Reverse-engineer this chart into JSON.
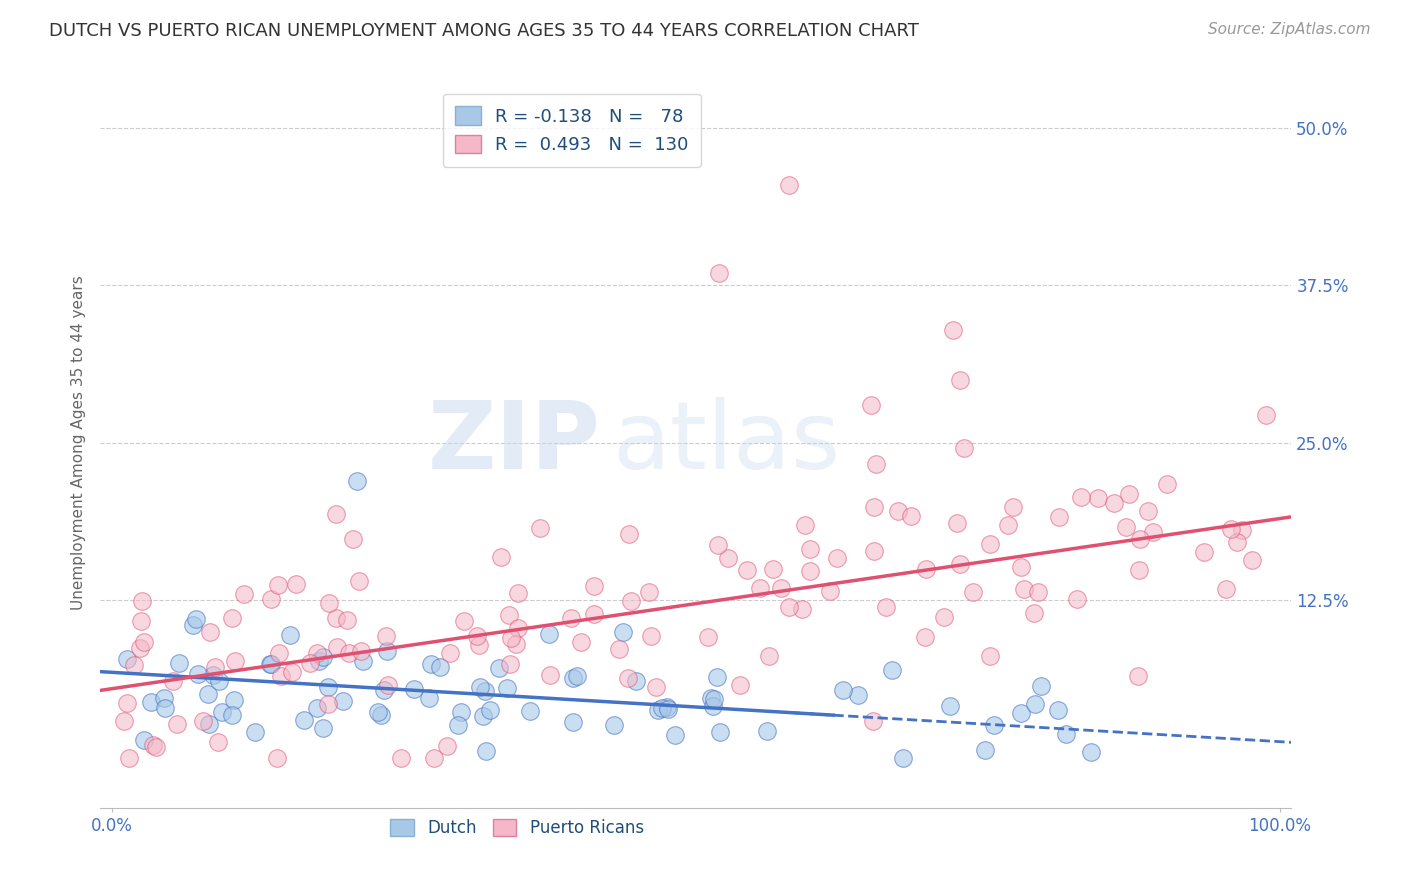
{
  "title": "DUTCH VS PUERTO RICAN UNEMPLOYMENT AMONG AGES 35 TO 44 YEARS CORRELATION CHART",
  "source": "Source: ZipAtlas.com",
  "ylabel": "Unemployment Among Ages 35 to 44 years",
  "ytick_labels": [
    "12.5%",
    "25.0%",
    "37.5%",
    "50.0%"
  ],
  "ytick_values": [
    0.125,
    0.25,
    0.375,
    0.5
  ],
  "xlim": [
    -0.01,
    1.01
  ],
  "ylim": [
    -0.04,
    0.54
  ],
  "dutch_R": -0.138,
  "dutch_N": 78,
  "pr_R": 0.493,
  "pr_N": 130,
  "dutch_scatter_color": "#a8c8e8",
  "pr_scatter_color": "#f4b8c8",
  "dutch_line_color": "#4472c4",
  "pr_line_color": "#e05070",
  "tick_color": "#4472c4",
  "legend_text_color": "#1f4e79",
  "title_fontsize": 13,
  "source_fontsize": 11,
  "axis_label_fontsize": 11,
  "tick_fontsize": 12,
  "legend_fontsize": 13,
  "watermark_zip": "ZIP",
  "watermark_atlas": "atlas",
  "background_color": "#ffffff",
  "grid_color": "#cccccc",
  "dutch_intercept": 0.068,
  "dutch_slope": -0.055,
  "pr_intercept": 0.055,
  "pr_slope": 0.135
}
